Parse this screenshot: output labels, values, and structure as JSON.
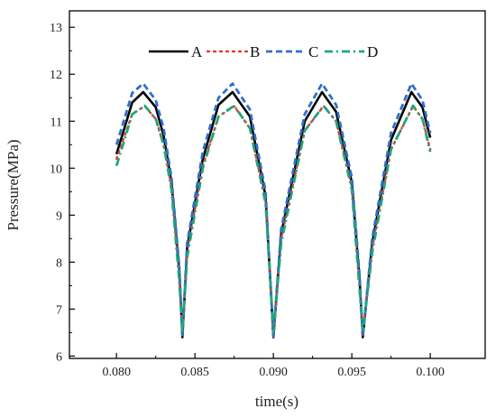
{
  "chart_data": {
    "type": "line",
    "title": "",
    "xlabel": "time(s)",
    "ylabel": "Pressure(MPa)",
    "xlim": [
      0.077,
      0.1035
    ],
    "ylim": [
      5.95,
      13.35
    ],
    "xticks": [
      0.08,
      0.085,
      0.09,
      0.095,
      0.1
    ],
    "xtick_labels": [
      "0.080",
      "0.085",
      "0.090",
      "0.095",
      "0.100"
    ],
    "yticks": [
      6,
      7,
      8,
      9,
      10,
      11,
      12,
      13
    ],
    "ytick_labels": [
      "6",
      "7",
      "8",
      "9",
      "10",
      "11",
      "12",
      "13"
    ],
    "grid": false,
    "legend_position": "top-center",
    "period": 0.005714,
    "series": [
      {
        "name": "A",
        "color": "#000000",
        "dash": "solid",
        "x": [
          0.08,
          0.081,
          0.0817,
          0.0825,
          0.083,
          0.0835,
          0.084,
          0.0842,
          0.0845,
          0.0855,
          0.0865,
          0.0874,
          0.0885,
          0.0895,
          0.09,
          0.0905,
          0.092,
          0.0931,
          0.094,
          0.095,
          0.0955,
          0.0957,
          0.0963,
          0.0975,
          0.0988,
          0.0995,
          0.1
        ],
        "y": [
          10.3,
          11.4,
          11.62,
          11.3,
          10.7,
          9.7,
          7.8,
          6.4,
          8.3,
          10.2,
          11.35,
          11.62,
          11.1,
          9.4,
          6.4,
          8.6,
          11.0,
          11.62,
          11.2,
          9.7,
          7.6,
          6.4,
          8.4,
          10.6,
          11.62,
          11.3,
          10.65
        ]
      },
      {
        "name": "B",
        "color": "#e03c31",
        "dash": "dot",
        "x": [
          0.08,
          0.081,
          0.0818,
          0.0825,
          0.083,
          0.0835,
          0.084,
          0.0842,
          0.0845,
          0.0855,
          0.0865,
          0.0875,
          0.0885,
          0.0895,
          0.09,
          0.0905,
          0.092,
          0.0932,
          0.094,
          0.095,
          0.0955,
          0.0957,
          0.0963,
          0.0975,
          0.0989,
          0.0995,
          0.1
        ],
        "y": [
          10.2,
          11.15,
          11.32,
          11.05,
          10.5,
          9.6,
          7.7,
          6.45,
          8.2,
          10.05,
          11.1,
          11.32,
          10.85,
          9.3,
          6.4,
          8.5,
          10.8,
          11.32,
          11.0,
          9.6,
          7.5,
          6.45,
          8.3,
          10.4,
          11.32,
          11.05,
          10.4
        ]
      },
      {
        "name": "C",
        "color": "#2e6fcf",
        "dash": "dash",
        "x": [
          0.08,
          0.081,
          0.0817,
          0.0825,
          0.083,
          0.0835,
          0.084,
          0.0842,
          0.0845,
          0.0855,
          0.0865,
          0.0874,
          0.0885,
          0.0895,
          0.09,
          0.0905,
          0.092,
          0.0931,
          0.094,
          0.095,
          0.0955,
          0.0957,
          0.0963,
          0.0975,
          0.0988,
          0.0995,
          0.1
        ],
        "y": [
          10.5,
          11.6,
          11.8,
          11.45,
          10.85,
          9.8,
          7.9,
          6.42,
          8.4,
          10.35,
          11.5,
          11.8,
          11.25,
          9.5,
          6.42,
          8.7,
          11.15,
          11.8,
          11.35,
          9.8,
          7.7,
          6.42,
          8.5,
          10.75,
          11.8,
          11.45,
          10.75
        ]
      },
      {
        "name": "D",
        "color": "#1fa67a",
        "dash": "dashdot",
        "x": [
          0.08,
          0.081,
          0.0818,
          0.0825,
          0.083,
          0.0835,
          0.084,
          0.0842,
          0.0845,
          0.0855,
          0.0865,
          0.0875,
          0.0885,
          0.0895,
          0.09,
          0.0905,
          0.092,
          0.0932,
          0.094,
          0.095,
          0.0955,
          0.0957,
          0.0963,
          0.0975,
          0.0989,
          0.0995,
          0.1
        ],
        "y": [
          10.05,
          11.15,
          11.33,
          11.05,
          10.5,
          9.55,
          7.6,
          6.5,
          8.1,
          10.0,
          11.1,
          11.33,
          10.85,
          9.25,
          6.5,
          8.4,
          10.8,
          11.33,
          11.0,
          9.55,
          7.4,
          6.5,
          8.2,
          10.4,
          11.33,
          11.05,
          10.35
        ]
      }
    ]
  }
}
